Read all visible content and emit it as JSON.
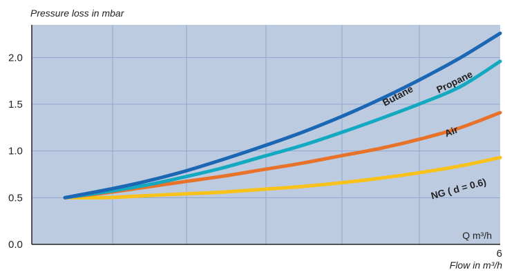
{
  "chart_data": {
    "type": "line",
    "ylabel": "Pressure loss in mbar",
    "xlabel": "Flow in m³/h",
    "x_tick_label": "6",
    "x_unit_label": "Q m³/h",
    "xlim": [
      0.5,
      6
    ],
    "ylim": [
      0.0,
      2.35
    ],
    "y_ticks": [
      "0.0",
      "0.5",
      "1.0",
      "1.5",
      "2.0"
    ],
    "grid": true,
    "background_color": "#bccbe0",
    "grid_color": "#8fa7cc",
    "x": [
      0.5,
      1.0,
      1.5,
      2.0,
      2.5,
      3.0,
      3.5,
      4.0,
      4.5,
      5.0,
      5.5,
      6.0
    ],
    "series": [
      {
        "name": "Butane",
        "color": "#1b67b4",
        "values": [
          0.5,
          0.58,
          0.67,
          0.78,
          0.91,
          1.05,
          1.2,
          1.37,
          1.56,
          1.77,
          2.0,
          2.26
        ]
      },
      {
        "name": "Propane",
        "color": "#13a9c0",
        "values": [
          0.5,
          0.56,
          0.63,
          0.72,
          0.82,
          0.94,
          1.06,
          1.2,
          1.35,
          1.51,
          1.69,
          1.96
        ]
      },
      {
        "name": "Air",
        "color": "#e8722a",
        "values": [
          0.5,
          0.55,
          0.61,
          0.67,
          0.73,
          0.8,
          0.87,
          0.95,
          1.03,
          1.13,
          1.25,
          1.41
        ]
      },
      {
        "name": "NG ( d = 0.6)",
        "color": "#f8c21a",
        "values": [
          0.5,
          0.5,
          0.52,
          0.54,
          0.56,
          0.59,
          0.62,
          0.66,
          0.71,
          0.77,
          0.84,
          0.93
        ]
      }
    ]
  }
}
